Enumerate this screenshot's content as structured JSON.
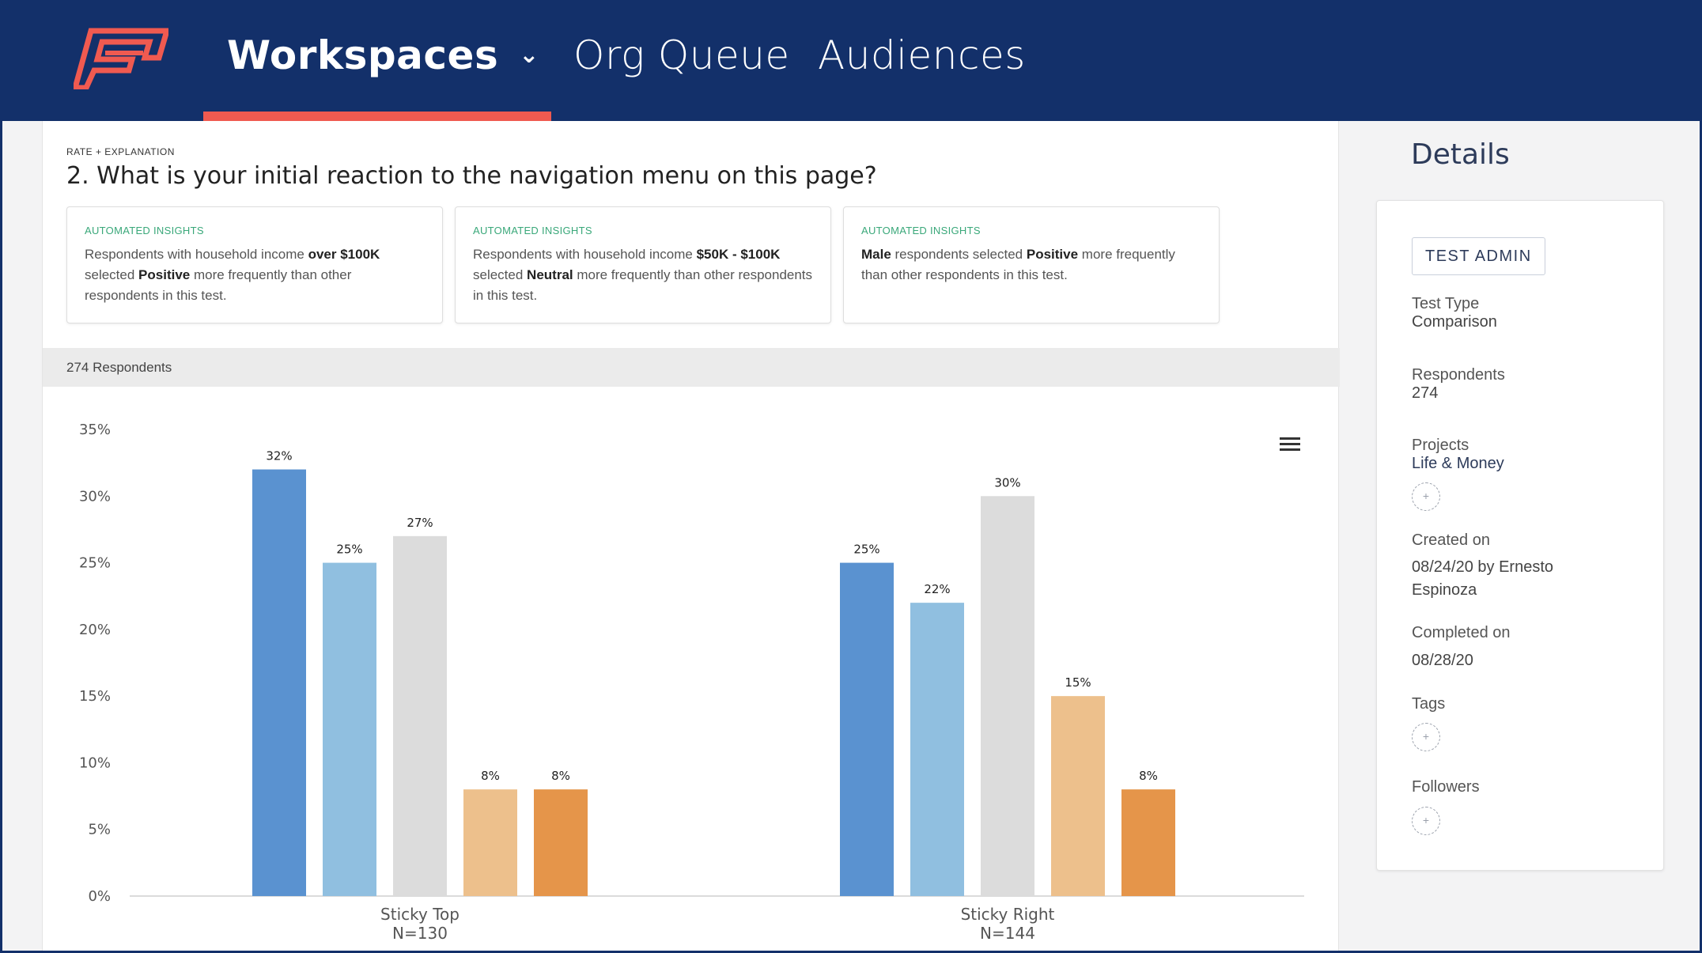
{
  "nav": {
    "items": [
      {
        "label": "Workspaces",
        "active": true,
        "has_dropdown": true
      },
      {
        "label": "Org Queue"
      },
      {
        "label": "Audiences"
      }
    ],
    "logo_icon": "brand-logo-icon",
    "colors": {
      "background": "#13306a",
      "accent": "#f05a50"
    }
  },
  "question": {
    "kicker": "RATE + EXPLANATION",
    "title": "2. What is your initial reaction to the navigation menu on this page?"
  },
  "insights": [
    {
      "label": "AUTOMATED INSIGHTS",
      "parts": [
        {
          "t": "Respondents with household income ",
          "b": false
        },
        {
          "t": "over $100K",
          "b": true
        },
        {
          "t": " selected ",
          "b": false
        },
        {
          "t": "Positive",
          "b": true
        },
        {
          "t": " more frequently than other respondents in this test.",
          "b": false
        }
      ]
    },
    {
      "label": "AUTOMATED INSIGHTS",
      "parts": [
        {
          "t": "Respondents with household income ",
          "b": false
        },
        {
          "t": "$50K - $100K",
          "b": true
        },
        {
          "t": " selected ",
          "b": false
        },
        {
          "t": "Neutral",
          "b": true
        },
        {
          "t": " more frequently than other respondents in this test.",
          "b": false
        }
      ]
    },
    {
      "label": "AUTOMATED INSIGHTS",
      "parts": [
        {
          "t": "Male",
          "b": true
        },
        {
          "t": " respondents selected ",
          "b": false
        },
        {
          "t": "Positive",
          "b": true
        },
        {
          "t": " more frequently than other respondents in this test.",
          "b": false
        }
      ]
    }
  ],
  "respondents_summary": "274 Respondents",
  "chart_data": {
    "type": "bar",
    "categories": [
      "Sticky Top",
      "Sticky Right"
    ],
    "category_sublabels": [
      "N=130",
      "N=144"
    ],
    "series": [
      {
        "values": [
          32,
          25
        ],
        "color": "#5a92d0"
      },
      {
        "values": [
          25,
          22
        ],
        "color": "#90bfe0"
      },
      {
        "values": [
          27,
          30
        ],
        "color": "#dcdcdc"
      },
      {
        "values": [
          8,
          15
        ],
        "color": "#edc08c"
      },
      {
        "values": [
          8,
          8
        ],
        "color": "#e5954a"
      }
    ],
    "value_suffix": "%",
    "yticks": [
      "0%",
      "5%",
      "10%",
      "15%",
      "20%",
      "25%",
      "30%",
      "35%"
    ],
    "ylim": [
      0,
      35
    ],
    "grid": false,
    "menu_icon": "hamburger-menu-icon"
  },
  "details": {
    "title": "Details",
    "badge": "TEST ADMIN",
    "fields": {
      "test_type_label": "Test Type",
      "test_type_value": "Comparison",
      "respondents_label": "Respondents",
      "respondents_value": "274",
      "projects_label": "Projects",
      "projects_value": "Life & Money",
      "created_label": "Created on",
      "created_value_1": "08/24/20 by Ernesto",
      "created_value_2": "Espinoza",
      "completed_label": "Completed on",
      "completed_value": "08/28/20",
      "tags_label": "Tags",
      "followers_label": "Followers"
    },
    "add_symbol": "+"
  }
}
